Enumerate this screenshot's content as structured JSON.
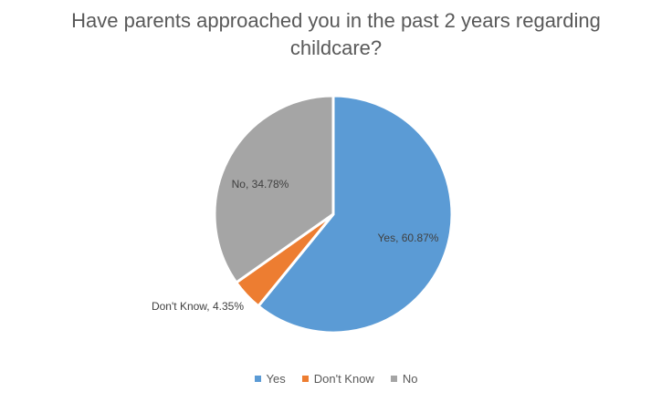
{
  "chart_data": {
    "type": "pie",
    "title": "Have parents approached you in the past 2 years regarding childcare?",
    "slices": [
      {
        "label": "Yes",
        "value": 60.87,
        "data_label": "Yes, 60.87%",
        "color": "#5B9BD5"
      },
      {
        "label": "Don't Know",
        "value": 4.35,
        "data_label": "Don't Know, 4.35%",
        "color": "#ED7D31"
      },
      {
        "label": "No",
        "value": 34.78,
        "data_label": "No, 34.78%",
        "color": "#A5A5A5"
      }
    ],
    "legend_position": "bottom",
    "start_angle": "top, clockwise"
  }
}
